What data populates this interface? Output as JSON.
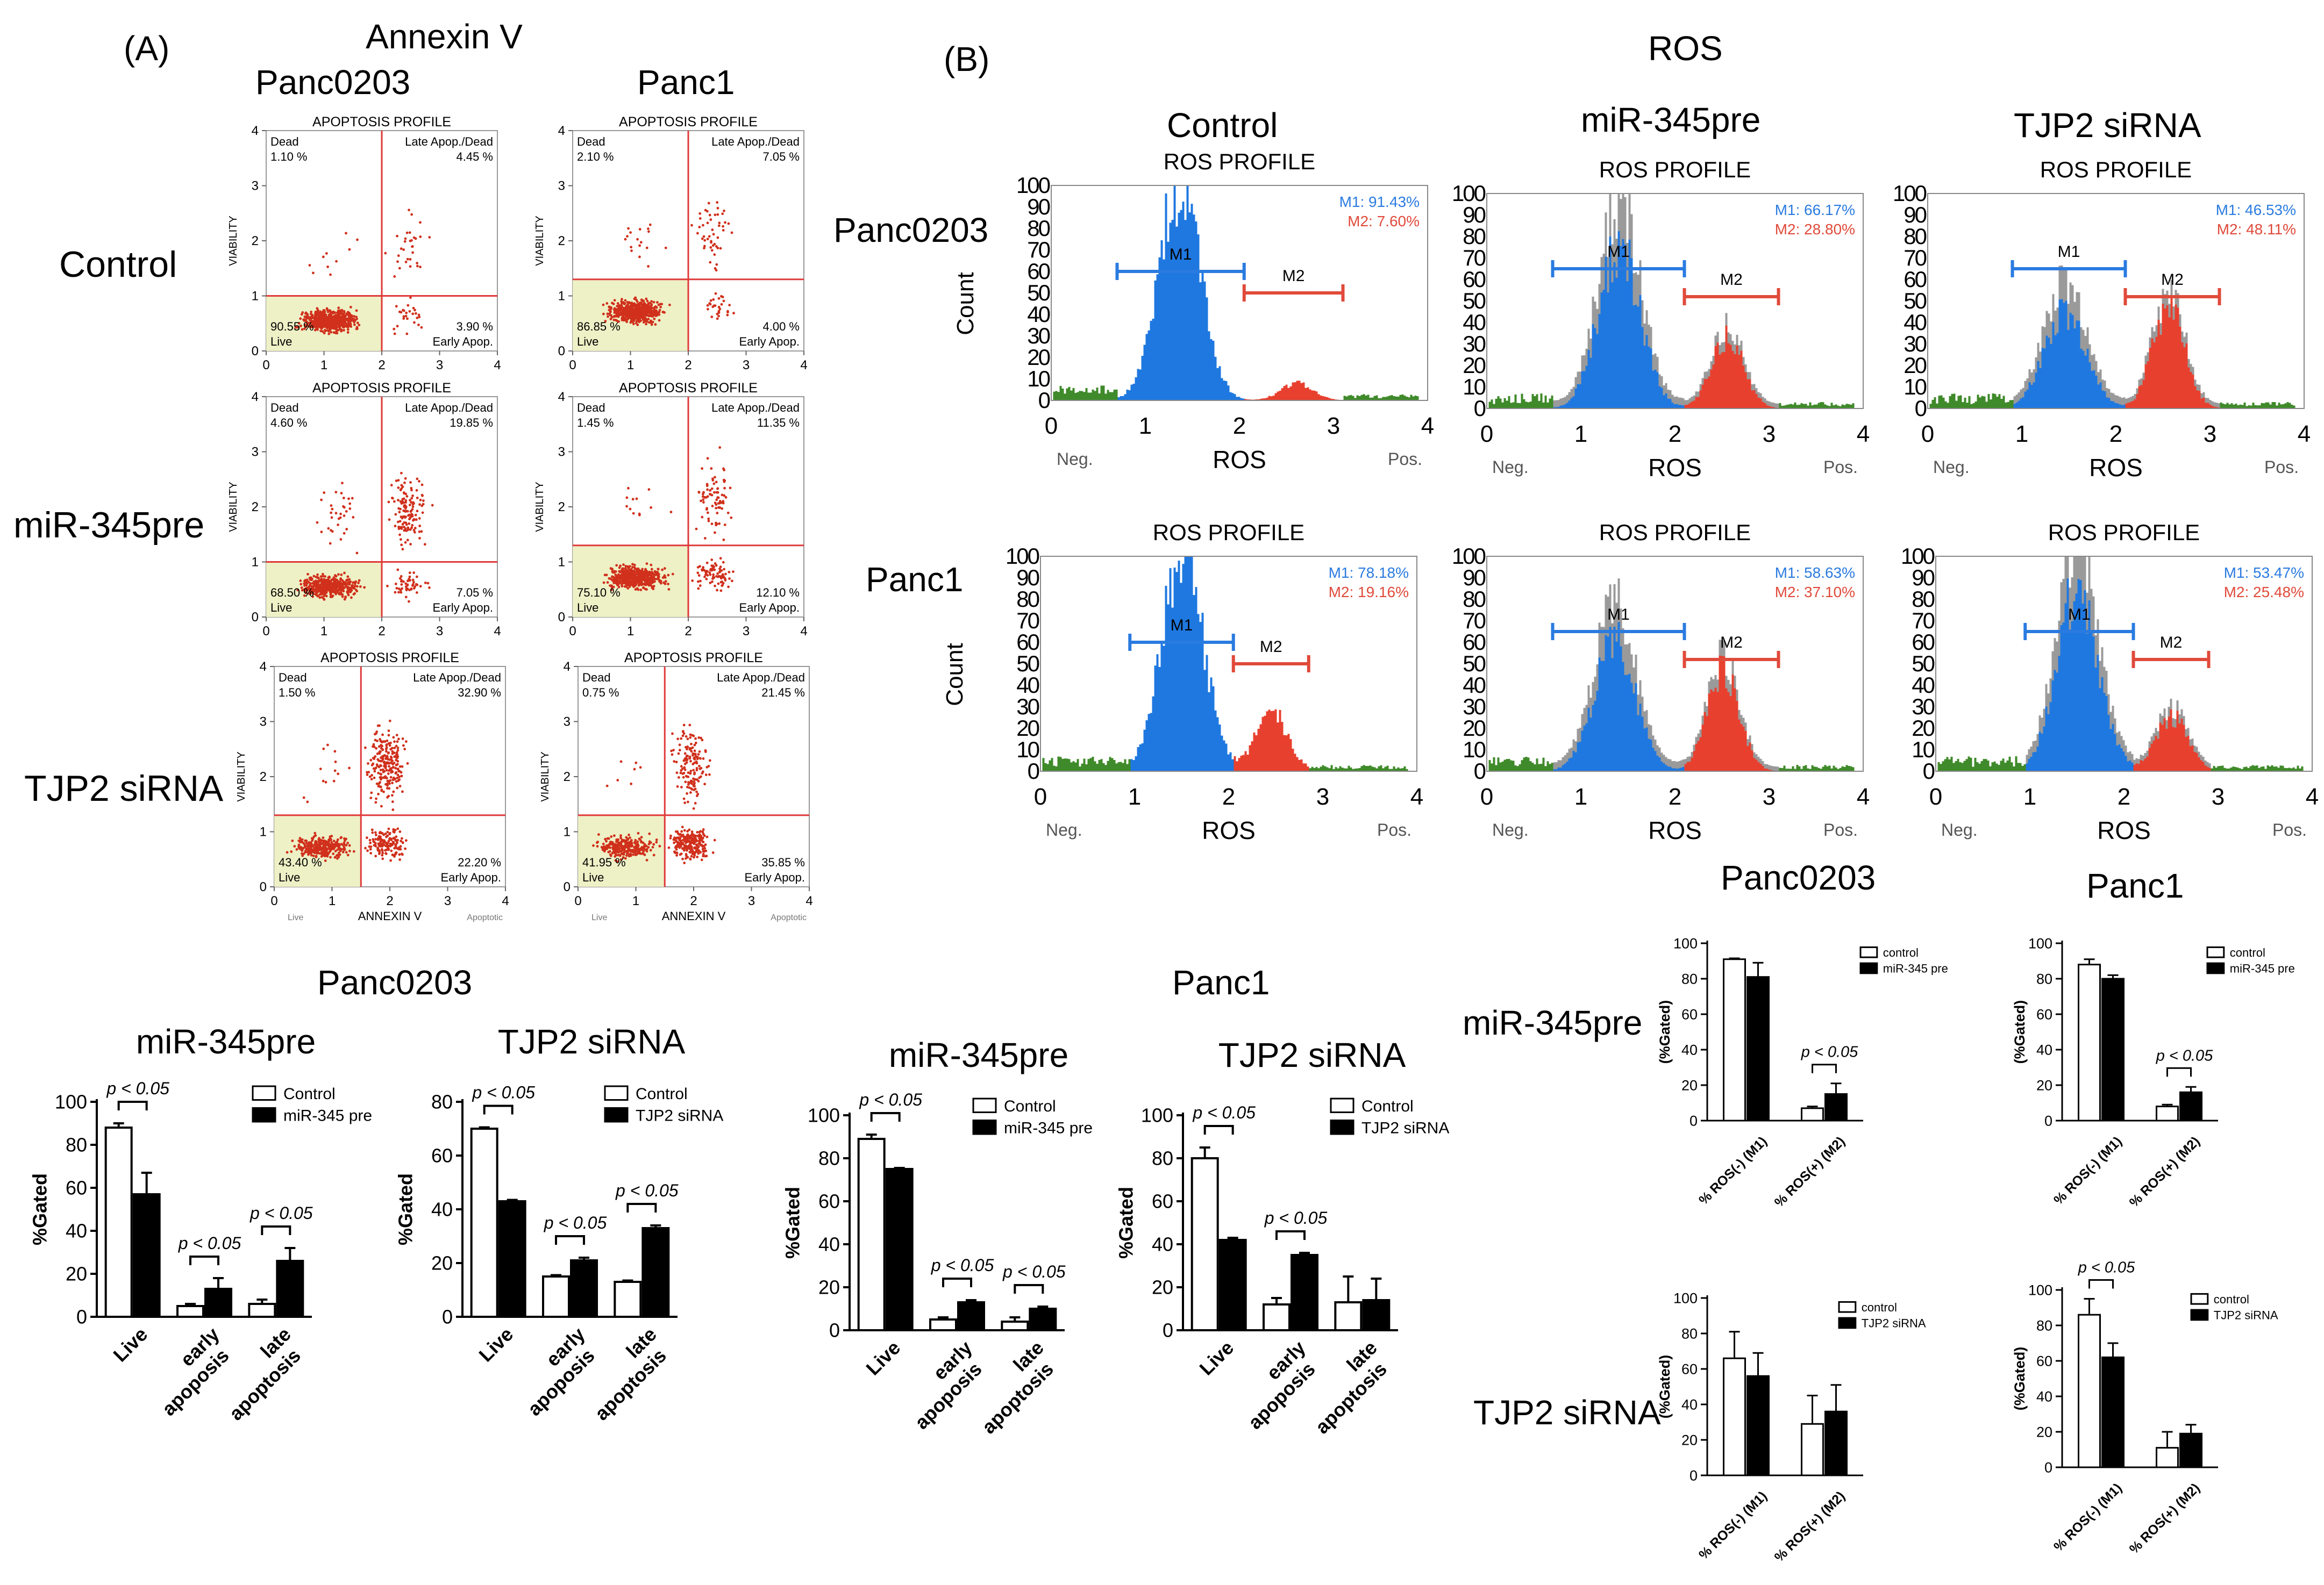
{
  "panels": {
    "a_label": "(A)",
    "b_label": "(B)",
    "annexin_title": "Annexin V",
    "ros_title": "ROS",
    "row_labels": [
      "Control",
      "miR-345pre",
      "TJP2 siRNA"
    ],
    "ros_row_labels": [
      "Panc0203",
      "Panc1"
    ],
    "ros_col_labels": [
      "Control",
      "miR-345pre",
      "TJP2 siRNA"
    ],
    "apop_col_labels": [
      "Panc0203",
      "Panc1"
    ],
    "ros_count_label": "Count",
    "bar_group_titles": [
      "Panc0203",
      "Panc1"
    ],
    "rosbar_group_titles": [
      "Panc0203",
      "Panc1"
    ],
    "rosbar_row_labels": [
      "miR-345pre",
      "TJP2 siRNA"
    ]
  },
  "chart_data": [
    {
      "id": "apoptosis-scatter-grid",
      "type": "scatter",
      "title": "APOPTOSIS PROFILE",
      "xlabel": "ANNEXIN V",
      "ylabel": "VIABILITY",
      "xlim": [
        0,
        4
      ],
      "ylim": [
        0,
        4
      ],
      "x_ticks": [
        "0",
        "1",
        "2",
        "3",
        "4"
      ],
      "y_ticks": [
        "0",
        "1",
        "2",
        "3",
        "4"
      ],
      "quadrant_names": {
        "dead": "Dead",
        "late": "Late Apop./Dead",
        "live": "Live",
        "early": "Early Apop."
      },
      "axis_note_live": "Live",
      "axis_note_apoptotic": "Apoptotic",
      "plots": [
        {
          "cell_line": "Panc0203",
          "treatment": "Control",
          "dead": "1.10 %",
          "late": "4.45 %",
          "live": "90.55 %",
          "early": "3.90 %",
          "gate_x": 2.0,
          "gate_y": 1.0
        },
        {
          "cell_line": "Panc1",
          "treatment": "Control",
          "dead": "2.10 %",
          "late": "7.05 %",
          "live": "86.85 %",
          "early": "4.00 %",
          "gate_x": 2.0,
          "gate_y": 1.3
        },
        {
          "cell_line": "Panc0203",
          "treatment": "miR-345pre",
          "dead": "4.60 %",
          "late": "19.85 %",
          "live": "68.50 %",
          "early": "7.05 %",
          "gate_x": 2.0,
          "gate_y": 1.0
        },
        {
          "cell_line": "Panc1",
          "treatment": "miR-345pre",
          "dead": "1.45 %",
          "late": "11.35 %",
          "live": "75.10 %",
          "early": "12.10 %",
          "gate_x": 2.0,
          "gate_y": 1.3
        },
        {
          "cell_line": "Panc0203",
          "treatment": "TJP2 siRNA",
          "dead": "1.50 %",
          "late": "32.90 %",
          "live": "43.40 %",
          "early": "22.20 %",
          "gate_x": 1.5,
          "gate_y": 1.3
        },
        {
          "cell_line": "Panc1",
          "treatment": "TJP2 siRNA",
          "dead": "0.75 %",
          "late": "21.45 %",
          "live": "41.95 %",
          "early": "35.85 %",
          "gate_x": 1.5,
          "gate_y": 1.3
        }
      ]
    },
    {
      "id": "ros-histogram-grid",
      "type": "area",
      "title": "ROS PROFILE",
      "xlabel": "ROS",
      "ylabel": "Count",
      "xlim": [
        0,
        4
      ],
      "ylim": [
        0,
        100
      ],
      "x_ticks": [
        "0",
        "1",
        "2",
        "3",
        "4"
      ],
      "y_ticks": [
        "0",
        "10",
        "20",
        "30",
        "40",
        "50",
        "60",
        "70",
        "80",
        "90",
        "100"
      ],
      "neg_label": "Neg.",
      "pos_label": "Pos.",
      "m1_label": "M1",
      "m2_label": "M2",
      "plots": [
        {
          "cell_line": "Panc0203",
          "treatment": "Control",
          "m1": "M1: 91.43%",
          "m2": "M2: 7.60%",
          "m1_range": [
            0.7,
            2.05
          ],
          "m2_range": [
            2.05,
            3.1
          ],
          "peak1": {
            "x": 1.35,
            "h": 100
          },
          "peak2": {
            "x": 2.6,
            "h": 8
          },
          "grey": false
        },
        {
          "cell_line": "Panc0203",
          "treatment": "miR-345pre",
          "m1": "M1: 66.17%",
          "m2": "M2: 28.80%",
          "m1_range": [
            0.7,
            2.1
          ],
          "m2_range": [
            2.1,
            3.1
          ],
          "peak1": {
            "x": 1.4,
            "h": 75
          },
          "peak2": {
            "x": 2.55,
            "h": 33
          },
          "grey": true
        },
        {
          "cell_line": "Panc0203",
          "treatment": "TJP2 siRNA",
          "m1": "M1: 46.53%",
          "m2": "M2: 48.11%",
          "m1_range": [
            0.9,
            2.1
          ],
          "m2_range": [
            2.1,
            3.1
          ],
          "peak1": {
            "x": 1.45,
            "h": 45
          },
          "peak2": {
            "x": 2.55,
            "h": 48
          },
          "grey": true
        },
        {
          "cell_line": "Panc1",
          "treatment": "Control",
          "m1": "M1: 78.18%",
          "m2": "M2: 19.16%",
          "m1_range": [
            0.95,
            2.05
          ],
          "m2_range": [
            2.05,
            2.85
          ],
          "peak1": {
            "x": 1.5,
            "h": 100
          },
          "peak2": {
            "x": 2.45,
            "h": 28
          },
          "grey": false
        },
        {
          "cell_line": "Panc1",
          "treatment": "miR-345pre",
          "m1": "M1: 58.63%",
          "m2": "M2: 37.10%",
          "m1_range": [
            0.7,
            2.1
          ],
          "m2_range": [
            2.1,
            3.1
          ],
          "peak1": {
            "x": 1.35,
            "h": 60
          },
          "peak2": {
            "x": 2.5,
            "h": 46
          },
          "grey": true
        },
        {
          "cell_line": "Panc1",
          "treatment": "TJP2 siRNA",
          "m1": "M1: 53.47%",
          "m2": "M2: 25.48%",
          "m1_range": [
            0.95,
            2.1
          ],
          "m2_range": [
            2.1,
            2.9
          ],
          "peak1": {
            "x": 1.5,
            "h": 85
          },
          "peak2": {
            "x": 2.5,
            "h": 25
          },
          "grey": true
        }
      ]
    },
    {
      "id": "apoptosis-bar-panc0203-mir345",
      "type": "bar",
      "group_title": "Panc0203",
      "title": "miR-345pre",
      "ylabel": "%Gated",
      "ylim": [
        0,
        100
      ],
      "y_ticks": [
        "0",
        "20",
        "40",
        "60",
        "80",
        "100"
      ],
      "categories": [
        "Live",
        "early apoposis",
        "late apoptosis"
      ],
      "series": [
        {
          "name": "Control",
          "values": [
            88,
            5,
            6
          ],
          "errors": [
            2,
            1,
            2
          ]
        },
        {
          "name": "miR-345 pre",
          "values": [
            57,
            13,
            26
          ],
          "errors": [
            10,
            5,
            6
          ]
        }
      ],
      "significance": [
        {
          "category": 0,
          "label": "p < 0.05"
        },
        {
          "category": 1,
          "label": "p < 0.05"
        },
        {
          "category": 2,
          "label": "p < 0.05"
        }
      ]
    },
    {
      "id": "apoptosis-bar-panc0203-tjp2",
      "type": "bar",
      "group_title": "Panc0203",
      "title": "TJP2 siRNA",
      "ylabel": "%Gated",
      "ylim": [
        0,
        80
      ],
      "y_ticks": [
        "0",
        "20",
        "40",
        "60",
        "80"
      ],
      "categories": [
        "Live",
        "early apoposis",
        "late apoptosis"
      ],
      "series": [
        {
          "name": "Control",
          "values": [
            70,
            15,
            13
          ],
          "errors": [
            0.5,
            0.5,
            0.5
          ]
        },
        {
          "name": "TJP2 siRNA",
          "values": [
            43,
            21,
            33
          ],
          "errors": [
            0.5,
            1,
            1
          ]
        }
      ],
      "significance": [
        {
          "category": 0,
          "label": "p < 0.05"
        },
        {
          "category": 1,
          "label": "p < 0.05"
        },
        {
          "category": 2,
          "label": "p < 0.05"
        }
      ]
    },
    {
      "id": "apoptosis-bar-panc1-mir345",
      "type": "bar",
      "group_title": "Panc1",
      "title": "miR-345pre",
      "ylabel": "%Gated",
      "ylim": [
        0,
        100
      ],
      "y_ticks": [
        "0",
        "20",
        "40",
        "60",
        "80",
        "100"
      ],
      "categories": [
        "Live",
        "early apoposis",
        "late apoptosis"
      ],
      "series": [
        {
          "name": "Control",
          "values": [
            89,
            5,
            4
          ],
          "errors": [
            2,
            1,
            2
          ]
        },
        {
          "name": "miR-345 pre",
          "values": [
            75,
            13,
            10
          ],
          "errors": [
            0.5,
            1,
            1
          ]
        }
      ],
      "significance": [
        {
          "category": 0,
          "label": "p < 0.05"
        },
        {
          "category": 1,
          "label": "p < 0.05"
        },
        {
          "category": 2,
          "label": "p < 0.05"
        }
      ]
    },
    {
      "id": "apoptosis-bar-panc1-tjp2",
      "type": "bar",
      "group_title": "Panc1",
      "title": "TJP2 siRNA",
      "ylabel": "%Gated",
      "ylim": [
        0,
        100
      ],
      "y_ticks": [
        "0",
        "20",
        "40",
        "60",
        "80",
        "100"
      ],
      "categories": [
        "Live",
        "early apoposis",
        "late apoptosis"
      ],
      "series": [
        {
          "name": "Control",
          "values": [
            80,
            12,
            13
          ],
          "errors": [
            5,
            3,
            12
          ]
        },
        {
          "name": "TJP2 siRNA",
          "values": [
            42,
            35,
            14
          ],
          "errors": [
            1,
            1,
            10
          ]
        }
      ],
      "significance": [
        {
          "category": 0,
          "label": "p < 0.05"
        },
        {
          "category": 1,
          "label": "p < 0.05"
        }
      ]
    },
    {
      "id": "ros-bar-panc0203-mir345",
      "type": "bar",
      "ylabel": "(%Gated)",
      "ylim": [
        0,
        100
      ],
      "y_ticks": [
        "0",
        "20",
        "40",
        "60",
        "80",
        "100"
      ],
      "categories": [
        "% ROS(-)  (M1)",
        "% ROS(+)  (M2)"
      ],
      "series": [
        {
          "name": "control",
          "values": [
            91,
            7
          ],
          "errors": [
            0.5,
            1
          ]
        },
        {
          "name": "miR-345 pre",
          "values": [
            81,
            15
          ],
          "errors": [
            8,
            6
          ]
        }
      ],
      "significance": [
        {
          "category": 1,
          "label": "p < 0.05"
        }
      ]
    },
    {
      "id": "ros-bar-panc1-mir345",
      "type": "bar",
      "ylabel": "(%Gated)",
      "ylim": [
        0,
        100
      ],
      "y_ticks": [
        "0",
        "20",
        "40",
        "60",
        "80",
        "100"
      ],
      "categories": [
        "% ROS(-)  (M1)",
        "% ROS(+)  (M2)"
      ],
      "series": [
        {
          "name": "control",
          "values": [
            88,
            8
          ],
          "errors": [
            3,
            1
          ]
        },
        {
          "name": "miR-345 pre",
          "values": [
            80,
            16
          ],
          "errors": [
            2,
            3
          ]
        }
      ],
      "significance": [
        {
          "category": 1,
          "label": "p < 0.05"
        }
      ]
    },
    {
      "id": "ros-bar-panc0203-tjp2",
      "type": "bar",
      "ylabel": "(%Gated)",
      "ylim": [
        0,
        100
      ],
      "y_ticks": [
        "0",
        "20",
        "40",
        "60",
        "80",
        "100"
      ],
      "categories": [
        "% ROS(-)  (M1)",
        "% ROS(+)  (M2)"
      ],
      "series": [
        {
          "name": "control",
          "values": [
            66,
            29
          ],
          "errors": [
            15,
            16
          ]
        },
        {
          "name": "TJP2 siRNA",
          "values": [
            56,
            36
          ],
          "errors": [
            13,
            15
          ]
        }
      ],
      "significance": []
    },
    {
      "id": "ros-bar-panc1-tjp2",
      "type": "bar",
      "ylabel": "(%Gated)",
      "ylim": [
        0,
        100
      ],
      "y_ticks": [
        "0",
        "20",
        "40",
        "60",
        "80",
        "100"
      ],
      "categories": [
        "% ROS(-)  (M1)",
        "% ROS(+)  (M2)"
      ],
      "series": [
        {
          "name": "control",
          "values": [
            86,
            11
          ],
          "errors": [
            9,
            9
          ]
        },
        {
          "name": "TJP2 siRNA",
          "values": [
            62,
            19
          ],
          "errors": [
            8,
            5
          ]
        }
      ],
      "significance": [
        {
          "category": 0,
          "label": "p < 0.05"
        }
      ]
    }
  ]
}
